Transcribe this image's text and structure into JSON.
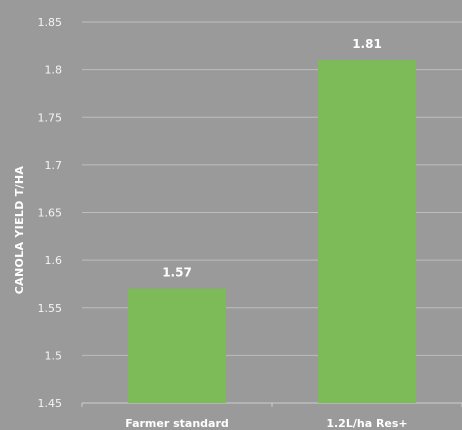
{
  "chart_data": {
    "type": "bar",
    "categories": [
      "Farmer standard",
      "1.2L/ha Res+"
    ],
    "values": [
      1.57,
      1.81
    ],
    "data_labels": [
      "1.57",
      "1.81"
    ],
    "ylabel": "CANOLA YIELD T/HA",
    "ylim": [
      1.45,
      1.85
    ],
    "yticks": [
      "1.45",
      "1.5",
      "1.55",
      "1.6",
      "1.65",
      "1.7",
      "1.75",
      "1.8",
      "1.85"
    ],
    "grid": true,
    "bar_color": "#7dbb58",
    "background_color": "#9a9a9a"
  }
}
